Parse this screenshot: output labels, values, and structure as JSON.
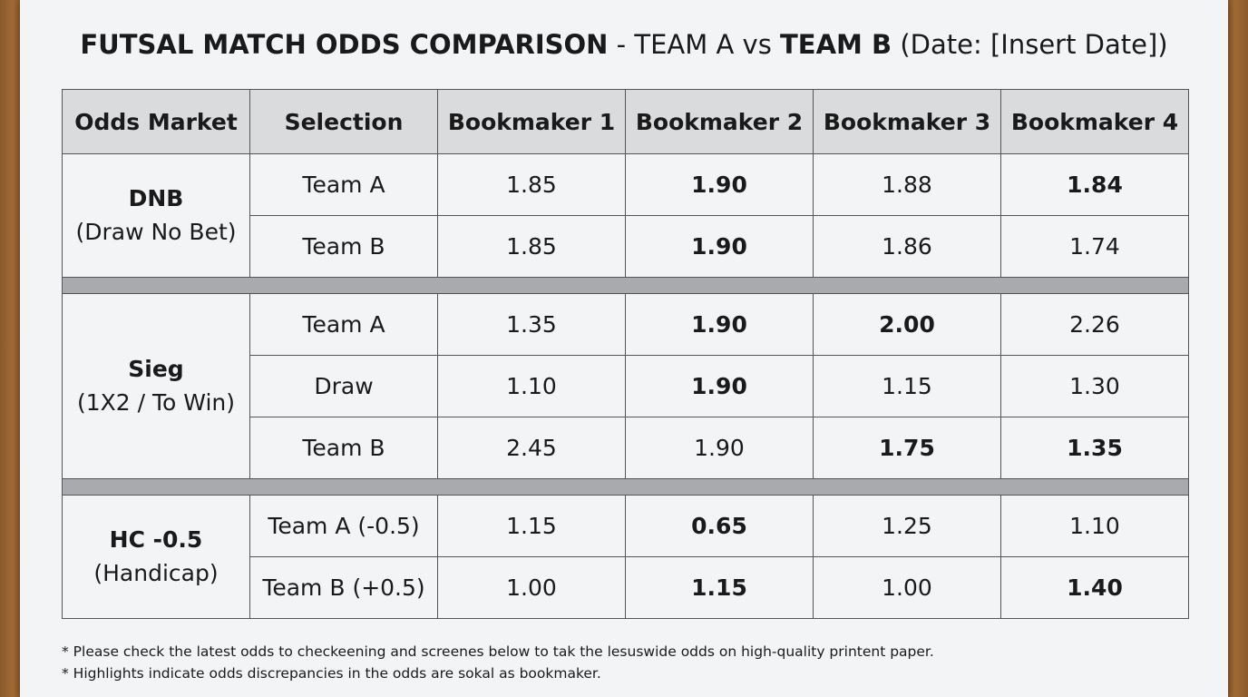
{
  "title": {
    "part1": "FUTSAL MATCH ODDS COMPARISON",
    "part2": " - TEAM A vs ",
    "part3": "TEAM B",
    "part4": " (Date: [Insert Date])"
  },
  "table": {
    "headers": [
      "Odds Market",
      "Selection",
      "Bookmaker 1",
      "Bookmaker 2",
      "Bookmaker 3",
      "Bookmaker 4"
    ],
    "markets": [
      {
        "name": "DNB",
        "sub": "(Draw No Bet)",
        "rows": [
          {
            "selection": "Team A",
            "odds": [
              {
                "v": "1.85",
                "hl": "",
                "bold": false
              },
              {
                "v": "1.90",
                "hl": "yellow",
                "bold": true
              },
              {
                "v": "1.88",
                "hl": "",
                "bold": false
              },
              {
                "v": "1.84",
                "hl": "blue",
                "bold": true
              }
            ]
          },
          {
            "selection": "Team B",
            "odds": [
              {
                "v": "1.85",
                "hl": "",
                "bold": false
              },
              {
                "v": "1.90",
                "hl": "blue",
                "bold": true
              },
              {
                "v": "1.86",
                "hl": "",
                "bold": false
              },
              {
                "v": "1.74",
                "hl": "",
                "bold": false
              }
            ]
          }
        ]
      },
      {
        "name": "Sieg",
        "sub": "(1X2 / To Win)",
        "rows": [
          {
            "selection": "Team A",
            "odds": [
              {
                "v": "1.35",
                "hl": "",
                "bold": false
              },
              {
                "v": "1.90",
                "hl": "",
                "bold": true
              },
              {
                "v": "2.00",
                "hl": "yellow",
                "bold": true
              },
              {
                "v": "2.26",
                "hl": "",
                "bold": false
              }
            ]
          },
          {
            "selection": "Draw",
            "odds": [
              {
                "v": "1.10",
                "hl": "",
                "bold": false
              },
              {
                "v": "1.90",
                "hl": "yellow",
                "bold": true
              },
              {
                "v": "1.15",
                "hl": "",
                "bold": false
              },
              {
                "v": "1.30",
                "hl": "",
                "bold": false
              }
            ]
          },
          {
            "selection": "Team B",
            "odds": [
              {
                "v": "2.45",
                "hl": "",
                "bold": false
              },
              {
                "v": "1.90",
                "hl": "",
                "bold": false
              },
              {
                "v": "1.75",
                "hl": "yellow",
                "bold": true
              },
              {
                "v": "1.35",
                "hl": "blue",
                "bold": true
              }
            ]
          }
        ]
      },
      {
        "name": "HC -0.5",
        "sub": "(Handicap)",
        "rows": [
          {
            "selection": "Team A (-0.5)",
            "odds": [
              {
                "v": "1.15",
                "hl": "",
                "bold": false
              },
              {
                "v": "0.65",
                "hl": "blue",
                "bold": true
              },
              {
                "v": "1.25",
                "hl": "",
                "bold": false
              },
              {
                "v": "1.10",
                "hl": "",
                "bold": false
              }
            ]
          },
          {
            "selection": "Team B (+0.5)",
            "odds": [
              {
                "v": "1.00",
                "hl": "",
                "bold": false
              },
              {
                "v": "1.15",
                "hl": "blue",
                "bold": true
              },
              {
                "v": "1.00",
                "hl": "",
                "bold": false
              },
              {
                "v": "1.40",
                "hl": "yellow",
                "bold": true
              }
            ]
          }
        ]
      }
    ]
  },
  "notes": [
    "* Please check the latest odds to checkeening and screenes below to tak the lesuswide odds on high-quality printent paper.",
    "* Highlights indicate odds discrepancies in the odds are sokal as bookmaker."
  ]
}
